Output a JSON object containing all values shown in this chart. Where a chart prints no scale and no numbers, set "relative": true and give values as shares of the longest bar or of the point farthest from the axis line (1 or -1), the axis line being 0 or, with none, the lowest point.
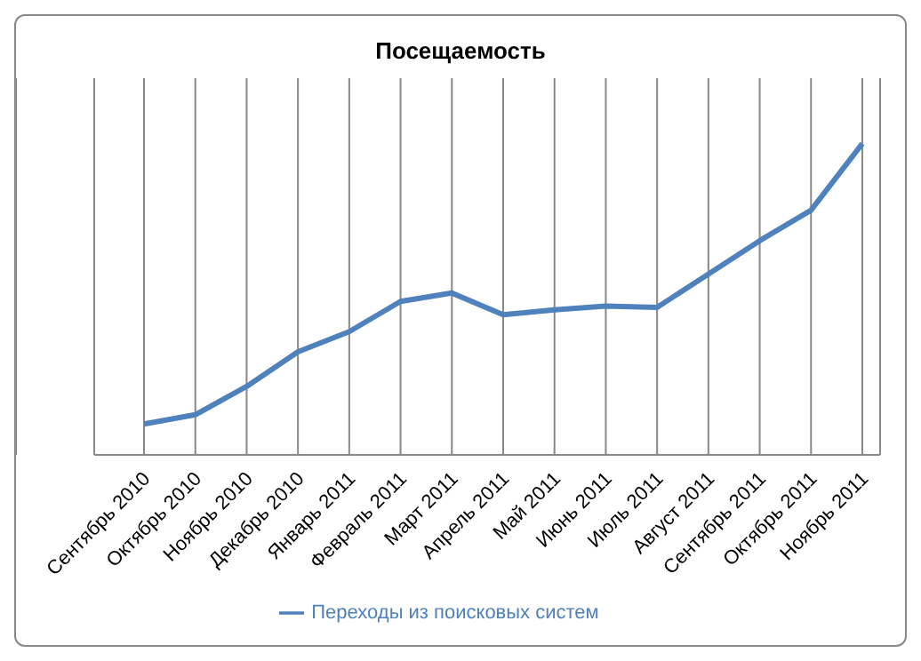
{
  "chart_data": {
    "type": "line",
    "title": "Посещаемость",
    "relative": true,
    "grid": true,
    "legend": "bottom",
    "marker": "none",
    "line_style": "solid",
    "categories": [
      "Сентябрь 2010",
      "Октябрь 2010",
      "Ноябрь 2010",
      "Декабрь 2010",
      "Январь 2011",
      "Февраль 2011",
      "Март 2011",
      "Апрель 2011",
      "Май 2011",
      "Июнь 2011",
      "Июль 2011",
      "Август 2011",
      "Сентябрь 2011",
      "Октябрь 2011",
      "Ноябрь 2011"
    ],
    "series": [
      {
        "name": "Переходы из поисковых систем",
        "color": "#4f81bd",
        "values": [
          0.099,
          0.129,
          0.22,
          0.331,
          0.396,
          0.493,
          0.52,
          0.45,
          0.466,
          0.478,
          0.474,
          0.581,
          0.688,
          0.786,
          1
        ]
      }
    ]
  }
}
